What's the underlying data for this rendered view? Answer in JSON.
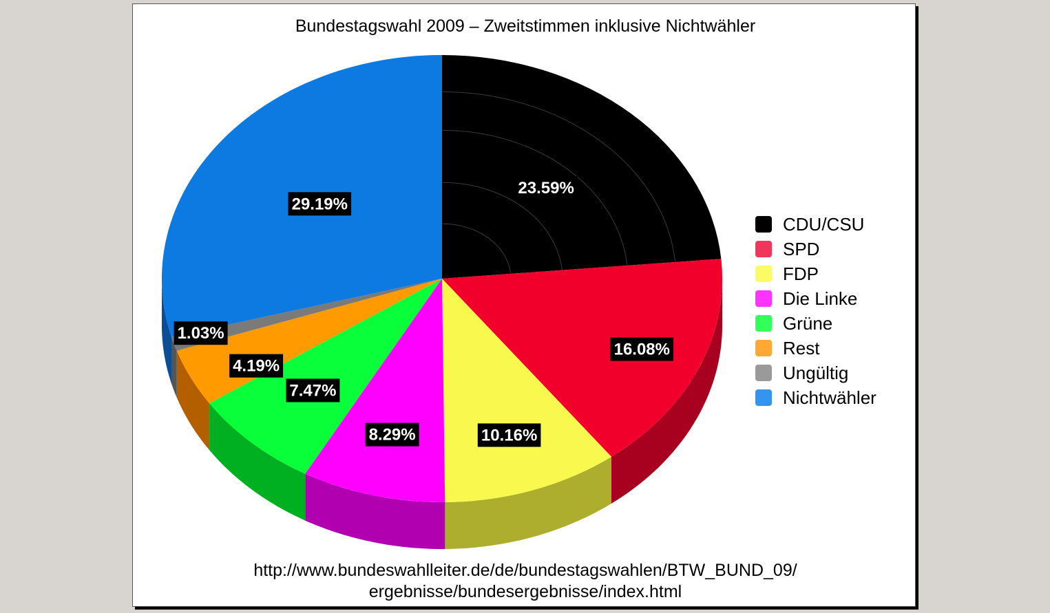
{
  "chart_data": {
    "type": "pie",
    "title": "Bundestagswahl 2009 – Zweitstimmen inklusive Nichtwähler",
    "unit": "%",
    "legend_position": "right",
    "slices": [
      {
        "label": "CDU/CSU",
        "value": 23.59,
        "value_label": "23.59%",
        "color": "#000000",
        "side_color": "#000000",
        "legend_color": "#000000"
      },
      {
        "label": "SPD",
        "value": 16.08,
        "value_label": "16.08%",
        "color": "#f2002c",
        "side_color": "#a8001f",
        "legend_color": "#f0365a"
      },
      {
        "label": "FDP",
        "value": 10.16,
        "value_label": "10.16%",
        "color": "#f8f84e",
        "side_color": "#adad2e",
        "legend_color": "#fbfb66"
      },
      {
        "label": "Die Linke",
        "value": 8.29,
        "value_label": "8.29%",
        "color": "#ff00ff",
        "side_color": "#b000b0",
        "legend_color": "#ff33ff"
      },
      {
        "label": "Grüne",
        "value": 7.47,
        "value_label": "7.47%",
        "color": "#08ff3a",
        "side_color": "#00b020",
        "legend_color": "#33ff5a"
      },
      {
        "label": "Rest",
        "value": 4.19,
        "value_label": "4.19%",
        "color": "#ff9a00",
        "side_color": "#b35f00",
        "legend_color": "#ffa833"
      },
      {
        "label": "Ungültig",
        "value": 1.03,
        "value_label": "1.03%",
        "color": "#7a7a7a",
        "side_color": "#555555",
        "legend_color": "#9a9a9a"
      },
      {
        "label": "Nichtwähler",
        "value": 29.19,
        "value_label": "29.19%",
        "color": "#0c7ae0",
        "side_color": "#0a4f95",
        "legend_color": "#3395f0"
      }
    ]
  },
  "source_lines": [
    "http://www.bundeswahlleiter.de/de/bundestagswahlen/BTW_BUND_09/",
    "ergebnisse/bundesergebnisse/index.html"
  ]
}
